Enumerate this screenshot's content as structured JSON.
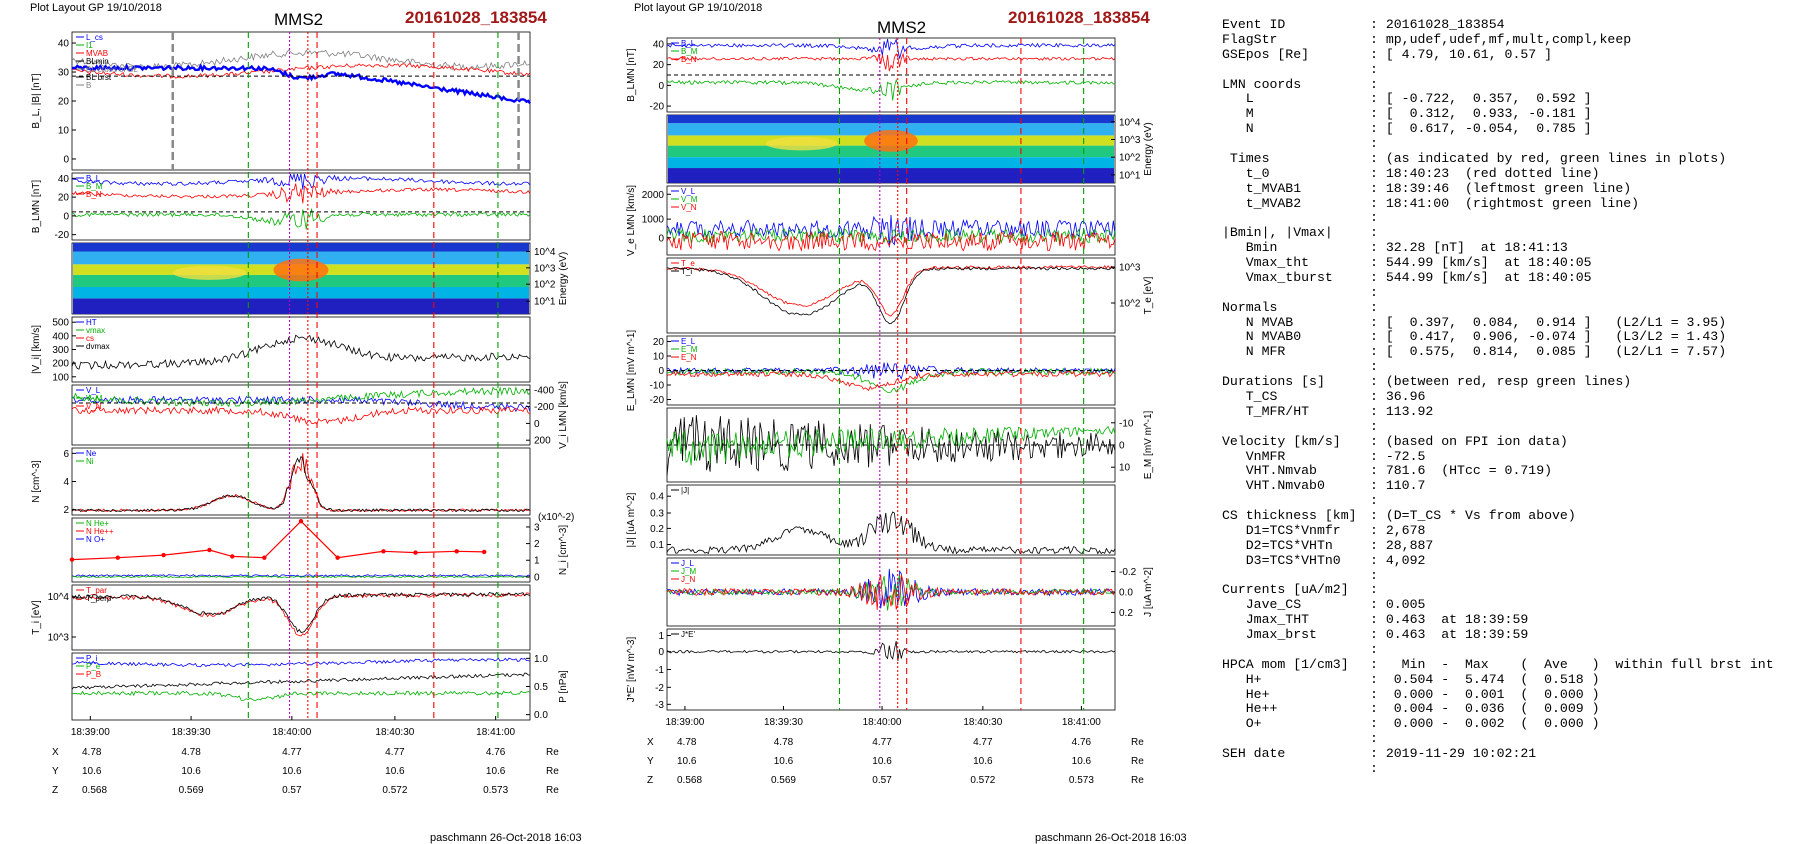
{
  "header": {
    "left_layout": "Plot Layout GP 19/10/2018",
    "middle_layout": "Plot layout GP 19/10/2018",
    "spacecraft": "MMS2",
    "event_id": "20161028_183854",
    "footer": "paschmann 26-Oct-2018 16:03"
  },
  "colors": {
    "event_title": "#a01818",
    "field_L": "#0000ff",
    "field_M": "#00b000",
    "field_N": "#ff0000",
    "time_line_red": "#ff0000",
    "time_line_green": "#00a000",
    "time_line_magenta": "#c000c0"
  },
  "chart_data": [
    {
      "type": "line",
      "title": "MMS2  20161028_183854 (left column)",
      "x_ticks": [
        "18:39:00",
        "18:39:30",
        "18:40:00",
        "18:40:30",
        "18:41:00"
      ],
      "position_table": {
        "rows": [
          {
            "label": "X",
            "values": [
              "4.78",
              "4.78",
              "4.77",
              "4.77",
              "4.76"
            ],
            "unit": "Re"
          },
          {
            "label": "Y",
            "values": [
              "10.6",
              "10.6",
              "10.6",
              "10.6",
              "10.6"
            ],
            "unit": "Re"
          },
          {
            "label": "Z",
            "values": [
              "0.568",
              "0.569",
              "0.57",
              "0.572",
              "0.573"
            ],
            "unit": "Re"
          }
        ]
      },
      "panels": [
        {
          "ylabel": "B_L, |B| [nT]",
          "yticks": [
            "0",
            "10",
            "20",
            "30",
            "40"
          ],
          "legend": [
            "L_cs",
            "I1",
            "MVAB",
            "BLmin",
            "BL cross of BL",
            "BL brst",
            "B"
          ]
        },
        {
          "ylabel": "B_LMN [nT]",
          "yticks": [
            "-20",
            "0",
            "20",
            "40"
          ],
          "legend": [
            "B_L",
            "B_M",
            "B_N"
          ]
        },
        {
          "ylabel": "Energy (eV)",
          "yticks": [
            "10^4",
            "10^3",
            "10^2",
            "10^1"
          ]
        },
        {
          "ylabel": "|V_i| [km/s]",
          "yticks": [
            "100",
            "200",
            "300",
            "400",
            "500"
          ],
          "legend": [
            "HT",
            "vmax",
            "cs",
            "dvmax"
          ]
        },
        {
          "ylabel": "V_i LMN [km/s]",
          "yticks": [
            "200",
            "0",
            "-200",
            "-400"
          ],
          "legend": [
            "V_L",
            "V_M",
            "V_N"
          ]
        },
        {
          "ylabel": "N [cm^-3]",
          "yticks": [
            "2",
            "4",
            "6"
          ],
          "legend": [
            "Ne",
            "Ni"
          ]
        },
        {
          "ylabel": "N_i [cm^-3]",
          "yticks": [
            "0",
            "1",
            "2",
            "3"
          ],
          "scale_note": "(x10^-2)",
          "legend": [
            "N He+",
            "N He++",
            "N O+"
          ]
        },
        {
          "ylabel": "T_i [eV]",
          "yticks": [
            "10^3",
            "10^4"
          ],
          "legend": [
            "T_par",
            "T_perp"
          ]
        },
        {
          "ylabel": "P [nPa]",
          "yticks": [
            "0.0",
            "0.5",
            "1.0"
          ],
          "legend": [
            "P_i",
            "P_e",
            "P_B"
          ]
        }
      ]
    },
    {
      "type": "line",
      "title": "MMS2  20161028_183854 (middle column)",
      "x_ticks": [
        "18:39:00",
        "18:39:30",
        "18:40:00",
        "18:40:30",
        "18:41:00"
      ],
      "position_table": {
        "rows": [
          {
            "label": "X",
            "values": [
              "4.78",
              "4.78",
              "4.77",
              "4.77",
              "4.76"
            ],
            "unit": "Re"
          },
          {
            "label": "Y",
            "values": [
              "10.6",
              "10.6",
              "10.6",
              "10.6",
              "10.6"
            ],
            "unit": "Re"
          },
          {
            "label": "Z",
            "values": [
              "0.568",
              "0.569",
              "0.57",
              "0.572",
              "0.573"
            ],
            "unit": "Re"
          }
        ]
      },
      "panels": [
        {
          "ylabel": "B_LMN [nT]",
          "yticks": [
            "-20",
            "0",
            "20",
            "40"
          ],
          "legend": [
            "B_L",
            "B_M",
            "B_N"
          ]
        },
        {
          "ylabel": "Energy (eV)",
          "yticks": [
            "10^4",
            "10^3",
            "10^2",
            "10^1"
          ]
        },
        {
          "ylabel": "V_e LMN [km/s]",
          "yticks": [
            "0",
            "1000",
            "2000"
          ],
          "legend": [
            "V_L",
            "V_M",
            "V_N"
          ]
        },
        {
          "ylabel": "T_e [eV]",
          "yticks": [
            "10^2",
            "10^3"
          ],
          "legend": [
            "T_e",
            "T_i"
          ]
        },
        {
          "ylabel": "E_LMN [mV m^-1]",
          "yticks": [
            "-20",
            "-10",
            "0",
            "10",
            "20"
          ],
          "legend": [
            "E_L",
            "E_M",
            "E_N"
          ]
        },
        {
          "ylabel": "E_M [mV m^-1]",
          "yticks": [
            "-10",
            "0",
            "10"
          ]
        },
        {
          "ylabel": "|J| [uA m^-2]",
          "yticks": [
            "0.1",
            "0.2",
            "0.3",
            "0.4"
          ],
          "legend": [
            "|J|"
          ]
        },
        {
          "ylabel": "J [uA m^-2]",
          "yticks": [
            "-0.2",
            "0.0",
            "0.2"
          ],
          "legend": [
            "J_L",
            "J_M",
            "J_N"
          ]
        },
        {
          "ylabel": "J*E' [nW m^-3]",
          "yticks": [
            "-3",
            "-2",
            "-1",
            "0",
            "1"
          ],
          "legend": [
            "J*E'"
          ]
        }
      ]
    }
  ],
  "info": [
    {
      "label": "Event ID",
      "value": ": 20161028_183854"
    },
    {
      "label": "FlagStr",
      "value": ": mp,udef,udef,mf,mult,compl,keep"
    },
    {
      "label": "GSEpos [Re]",
      "value": ": [ 4.79, 10.61, 0.57 ]"
    },
    {
      "label": "",
      "value": ":"
    },
    {
      "label": "LMN coords",
      "value": ":"
    },
    {
      "label": "   L",
      "value": ": [ -0.722,  0.357,  0.592 ]"
    },
    {
      "label": "   M",
      "value": ": [  0.312,  0.933, -0.181 ]"
    },
    {
      "label": "   N",
      "value": ": [  0.617, -0.054,  0.785 ]"
    },
    {
      "label": "",
      "value": ":"
    },
    {
      "label": " Times",
      "value": ": (as indicated by red, green lines in plots)"
    },
    {
      "label": "   t_0",
      "value": ": 18:40:23  (red dotted line)"
    },
    {
      "label": "   t_MVAB1",
      "value": ": 18:39:46  (leftmost green line)"
    },
    {
      "label": "   t_MVAB2",
      "value": ": 18:41:00  (rightmost green line)"
    },
    {
      "label": "",
      "value": ":"
    },
    {
      "label": "|Bmin|, |Vmax|",
      "value": ":"
    },
    {
      "label": "   Bmin",
      "value": ": 32.28 [nT]  at 18:41:13"
    },
    {
      "label": "   Vmax_tht",
      "value": ": 544.99 [km/s]  at 18:40:05"
    },
    {
      "label": "   Vmax_tburst",
      "value": ": 544.99 [km/s]  at 18:40:05"
    },
    {
      "label": "",
      "value": ":"
    },
    {
      "label": "Normals",
      "value": ":"
    },
    {
      "label": "   N MVAB",
      "value": ": [  0.397,  0.084,  0.914 ]   (L2/L1 = 3.95)"
    },
    {
      "label": "   N MVAB0",
      "value": ": [  0.417,  0.906, -0.074 ]   (L3/L2 = 1.43)"
    },
    {
      "label": "   N MFR",
      "value": ": [  0.575,  0.814,  0.085 ]   (L2/L1 = 7.57)"
    },
    {
      "label": "",
      "value": ":"
    },
    {
      "label": "Durations [s]",
      "value": ": (between red, resp green lines)"
    },
    {
      "label": "   T_CS",
      "value": ": 36.96"
    },
    {
      "label": "   T_MFR/HT",
      "value": ": 113.92"
    },
    {
      "label": "",
      "value": ":"
    },
    {
      "label": "Velocity [km/s]",
      "value": ": (based on FPI ion data)"
    },
    {
      "label": "   VnMFR",
      "value": ": -72.5"
    },
    {
      "label": "   VHT.Nmvab",
      "value": ": 781.6  (HTcc = 0.719)"
    },
    {
      "label": "   VHT.Nmvab0",
      "value": ": 110.7"
    },
    {
      "label": "",
      "value": ":"
    },
    {
      "label": "CS thickness [km]",
      "value": ": (D=T_CS * Vs from above)"
    },
    {
      "label": "   D1=TCS*Vnmfr",
      "value": ": 2,678"
    },
    {
      "label": "   D2=TCS*VHTn",
      "value": ": 28,887"
    },
    {
      "label": "   D3=TCS*VHTn0",
      "value": ": 4,092"
    },
    {
      "label": "",
      "value": ":"
    },
    {
      "label": "Currents [uA/m2]",
      "value": ":"
    },
    {
      "label": "   Jave_CS",
      "value": ": 0.005"
    },
    {
      "label": "   Jmax_THT",
      "value": ": 0.463  at 18:39:59"
    },
    {
      "label": "   Jmax_brst",
      "value": ": 0.463  at 18:39:59"
    },
    {
      "label": "",
      "value": ":"
    },
    {
      "label": "HPCA mom [1/cm3]",
      "value": ":   Min  -  Max    (  Ave   )  within full brst int"
    },
    {
      "label": "   H+",
      "value": ":  0.504 -  5.474  (  0.518 )"
    },
    {
      "label": "   He+",
      "value": ":  0.000 -  0.001  (  0.000 )"
    },
    {
      "label": "   He++",
      "value": ":  0.004 -  0.036  (  0.009 )"
    },
    {
      "label": "   O+",
      "value": ":  0.000 -  0.002  (  0.000 )"
    },
    {
      "label": "",
      "value": ":"
    },
    {
      "label": "SEH date",
      "value": ": 2019-11-29 10:02:21"
    },
    {
      "label": "",
      "value": ":"
    }
  ]
}
